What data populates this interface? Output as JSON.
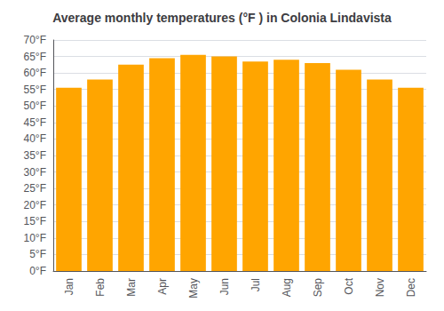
{
  "chart_data": {
    "type": "bar",
    "title": "Average monthly temperatures (°F ) in Colonia Lindavista",
    "categories": [
      "Jan",
      "Feb",
      "Mar",
      "Apr",
      "May",
      "Jun",
      "Jul",
      "Aug",
      "Sep",
      "Oct",
      "Nov",
      "Dec"
    ],
    "values": [
      55.5,
      58.0,
      62.5,
      64.5,
      65.5,
      65.0,
      63.5,
      64.0,
      63.0,
      61.0,
      58.0,
      55.5
    ],
    "color": "#FFA500",
    "ylim": [
      0,
      70
    ],
    "yticks": [
      {
        "value": 0,
        "label": "0°F"
      },
      {
        "value": 5,
        "label": "5°F"
      },
      {
        "value": 10,
        "label": "10°F"
      },
      {
        "value": 15,
        "label": "15°F"
      },
      {
        "value": 20,
        "label": "20°F"
      },
      {
        "value": 25,
        "label": "25°F"
      },
      {
        "value": 30,
        "label": "30°F"
      },
      {
        "value": 35,
        "label": "35°F"
      },
      {
        "value": 40,
        "label": "40°F"
      },
      {
        "value": 45,
        "label": "45°F"
      },
      {
        "value": 50,
        "label": "50°F"
      },
      {
        "value": 55,
        "label": "55°F"
      },
      {
        "value": 60,
        "label": "60°F"
      },
      {
        "value": 65,
        "label": "65°F"
      },
      {
        "value": 70,
        "label": "70°F"
      }
    ],
    "grid": true
  }
}
